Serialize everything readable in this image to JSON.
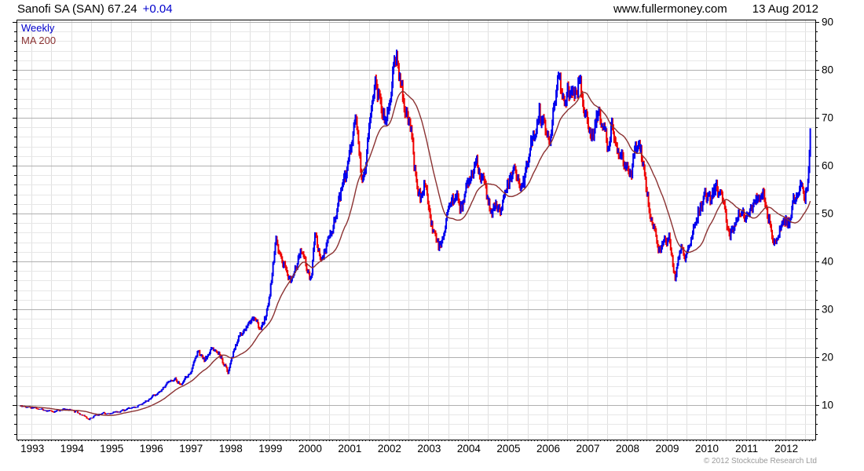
{
  "header": {
    "title": "Sanofi SA (SAN) 67.24",
    "change": "+0.04",
    "change_color": "#0000cc",
    "site": "www.fullermoney.com",
    "date": "13 Aug 2012"
  },
  "legend": {
    "items": [
      {
        "label": "Weekly",
        "color": "#0000cc"
      },
      {
        "label": "MA 200",
        "color": "#8b3232"
      }
    ]
  },
  "footer": {
    "copyright": "© 2012 Stockcube Research Ltd"
  },
  "chart_data": {
    "type": "line",
    "title": "Sanofi SA (SAN) weekly price with 200-period moving average",
    "frequency": "Weekly",
    "instrument": "Sanofi SA (SAN)",
    "last_price": 67.24,
    "change": "+0.04",
    "axes": {
      "xlim": [
        1992.62,
        2012.75
      ],
      "ylim": [
        2.8,
        90.5
      ],
      "x_ticks": [
        1993,
        1994,
        1995,
        1996,
        1997,
        1998,
        1999,
        2000,
        2001,
        2002,
        2003,
        2004,
        2005,
        2006,
        2007,
        2008,
        2009,
        2010,
        2011,
        2012
      ],
      "y_ticks": [
        10,
        20,
        30,
        40,
        50,
        60,
        70,
        80,
        90
      ],
      "y_axis_side": "right",
      "grid": {
        "vertical_step_years": 0.5,
        "horizontal_minor_step": 2,
        "horizontal_major_step": 10
      }
    },
    "colors": {
      "up_week": "#0000ee",
      "down_week": "#ee0000",
      "moving_average": "#8b3232",
      "grid_minor": "#e7e7e7",
      "grid_vertical": "#e0e0e0",
      "grid_major": "#b0b0b0",
      "frame": "#000000"
    },
    "series": [
      {
        "name": "Weekly",
        "style": "high-low bars colored by weekly direction",
        "anchors": [
          [
            1992.7,
            9.8
          ],
          [
            1993.0,
            9.5
          ],
          [
            1993.3,
            9.0
          ],
          [
            1993.6,
            8.7
          ],
          [
            1993.85,
            9.1
          ],
          [
            1994.05,
            8.9
          ],
          [
            1994.25,
            8.1
          ],
          [
            1994.45,
            7.1
          ],
          [
            1994.65,
            8.0
          ],
          [
            1994.9,
            8.3
          ],
          [
            1995.15,
            8.6
          ],
          [
            1995.45,
            9.2
          ],
          [
            1995.7,
            9.9
          ],
          [
            1995.95,
            11.2
          ],
          [
            1996.2,
            12.8
          ],
          [
            1996.45,
            14.8
          ],
          [
            1996.6,
            15.6
          ],
          [
            1996.75,
            14.4
          ],
          [
            1997.0,
            17.0
          ],
          [
            1997.2,
            21.5
          ],
          [
            1997.35,
            19.3
          ],
          [
            1997.55,
            21.8
          ],
          [
            1997.75,
            20.6
          ],
          [
            1997.95,
            17.0
          ],
          [
            1998.1,
            21.5
          ],
          [
            1998.25,
            24.8
          ],
          [
            1998.45,
            26.6
          ],
          [
            1998.6,
            28.6
          ],
          [
            1998.75,
            26.0
          ],
          [
            1998.9,
            28.5
          ],
          [
            1999.0,
            33.0
          ],
          [
            1999.1,
            40.0
          ],
          [
            1999.17,
            44.5
          ],
          [
            1999.3,
            40.5
          ],
          [
            1999.45,
            37.0
          ],
          [
            1999.55,
            35.8
          ],
          [
            1999.7,
            40.0
          ],
          [
            1999.82,
            42.5
          ],
          [
            1999.95,
            37.5
          ],
          [
            2000.05,
            36.0
          ],
          [
            2000.15,
            46.5
          ],
          [
            2000.28,
            40.5
          ],
          [
            2000.45,
            43.5
          ],
          [
            2000.6,
            47.5
          ],
          [
            2000.78,
            54.0
          ],
          [
            2000.95,
            58.5
          ],
          [
            2001.1,
            66.5
          ],
          [
            2001.18,
            69.5
          ],
          [
            2001.32,
            56.0
          ],
          [
            2001.45,
            62.5
          ],
          [
            2001.6,
            74.0
          ],
          [
            2001.68,
            77.5
          ],
          [
            2001.8,
            72.5
          ],
          [
            2001.92,
            68.5
          ],
          [
            2002.05,
            75.0
          ],
          [
            2002.2,
            83.5
          ],
          [
            2002.32,
            76.0
          ],
          [
            2002.45,
            71.5
          ],
          [
            2002.58,
            66.5
          ],
          [
            2002.7,
            56.5
          ],
          [
            2002.8,
            52.5
          ],
          [
            2002.9,
            56.0
          ],
          [
            2003.05,
            50.5
          ],
          [
            2003.15,
            46.0
          ],
          [
            2003.27,
            42.5
          ],
          [
            2003.4,
            46.5
          ],
          [
            2003.55,
            52.0
          ],
          [
            2003.75,
            53.5
          ],
          [
            2003.85,
            50.5
          ],
          [
            2004.0,
            56.0
          ],
          [
            2004.2,
            61.0
          ],
          [
            2004.45,
            54.5
          ],
          [
            2004.6,
            49.5
          ],
          [
            2004.7,
            52.5
          ],
          [
            2004.85,
            51.0
          ],
          [
            2005.05,
            57.5
          ],
          [
            2005.2,
            59.0
          ],
          [
            2005.35,
            55.0
          ],
          [
            2005.5,
            60.0
          ],
          [
            2005.65,
            66.5
          ],
          [
            2005.8,
            70.5
          ],
          [
            2005.95,
            67.0
          ],
          [
            2006.05,
            65.5
          ],
          [
            2006.15,
            72.0
          ],
          [
            2006.28,
            78.0
          ],
          [
            2006.4,
            72.5
          ],
          [
            2006.5,
            76.5
          ],
          [
            2006.62,
            73.5
          ],
          [
            2006.78,
            77.5
          ],
          [
            2006.92,
            72.5
          ],
          [
            2007.05,
            68.5
          ],
          [
            2007.15,
            66.5
          ],
          [
            2007.28,
            71.0
          ],
          [
            2007.45,
            66.5
          ],
          [
            2007.55,
            62.8
          ],
          [
            2007.62,
            69.5
          ],
          [
            2007.72,
            64.5
          ],
          [
            2007.85,
            62.5
          ],
          [
            2008.0,
            60.0
          ],
          [
            2008.12,
            58.5
          ],
          [
            2008.25,
            64.5
          ],
          [
            2008.38,
            62.0
          ],
          [
            2008.5,
            55.5
          ],
          [
            2008.62,
            48.5
          ],
          [
            2008.75,
            44.5
          ],
          [
            2008.85,
            41.5
          ],
          [
            2008.95,
            44.5
          ],
          [
            2009.05,
            45.5
          ],
          [
            2009.15,
            40.0
          ],
          [
            2009.22,
            36.5
          ],
          [
            2009.35,
            42.5
          ],
          [
            2009.48,
            40.5
          ],
          [
            2009.6,
            44.5
          ],
          [
            2009.75,
            49.0
          ],
          [
            2009.9,
            52.5
          ],
          [
            2010.02,
            54.0
          ],
          [
            2010.12,
            52.5
          ],
          [
            2010.25,
            56.0
          ],
          [
            2010.38,
            54.0
          ],
          [
            2010.5,
            48.5
          ],
          [
            2010.6,
            45.8
          ],
          [
            2010.72,
            47.5
          ],
          [
            2010.85,
            50.0
          ],
          [
            2010.98,
            48.8
          ],
          [
            2011.1,
            50.5
          ],
          [
            2011.22,
            51.5
          ],
          [
            2011.33,
            55.0
          ],
          [
            2011.45,
            53.5
          ],
          [
            2011.57,
            49.5
          ],
          [
            2011.67,
            45.5
          ],
          [
            2011.75,
            43.8
          ],
          [
            2011.87,
            47.0
          ],
          [
            2011.97,
            48.5
          ],
          [
            2012.08,
            48.0
          ],
          [
            2012.18,
            51.5
          ],
          [
            2012.3,
            55.0
          ],
          [
            2012.4,
            56.0
          ],
          [
            2012.47,
            53.5
          ],
          [
            2012.54,
            54.5
          ],
          [
            2012.58,
            58.0
          ],
          [
            2012.61,
            63.0
          ],
          [
            2012.63,
            67.24
          ]
        ]
      },
      {
        "name": "MA 200",
        "style": "smooth line",
        "derived": "200-day (40-week) trailing moving average of Weekly series"
      }
    ]
  }
}
